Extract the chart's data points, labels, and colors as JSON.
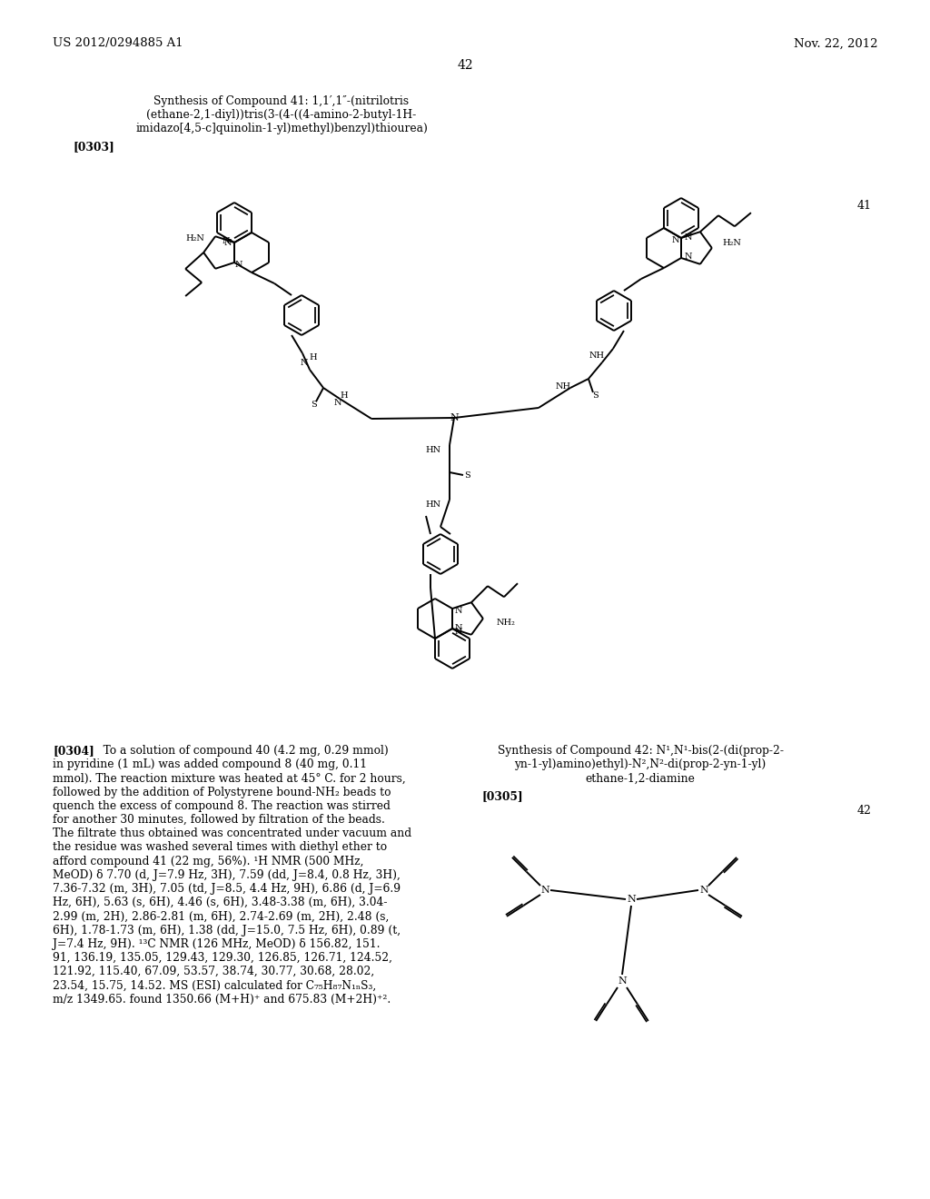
{
  "background_color": "#ffffff",
  "page_number": "42",
  "header_left": "US 2012/0294885 A1",
  "header_right": "Nov. 22, 2012",
  "synthesis_41_line1": "Synthesis of Compound 41: 1,1′,1″-(nitrilotris",
  "synthesis_41_line2": "(ethane-2,1-diyl))tris(3-(4-((4-amino-2-butyl-1H-",
  "synthesis_41_line3": "imidazo[4,5-c]quinolin-1-yl)methyl)benzyl)thiourea)",
  "label_0303": "[0303]",
  "compound_41_label": "41",
  "compound_42_label": "42",
  "synthesis_42_line1": "Synthesis of Compound 42: N¹,N¹-bis(2-(di(prop-2-",
  "synthesis_42_line2": "yn-1-yl)amino)ethyl)-N²,N²-di(prop-2-yn-1-yl)",
  "synthesis_42_line3": "ethane-1,2-diamine",
  "label_0304": "[0304]",
  "label_0305": "[0305]",
  "para304_bold": "[0304]",
  "para304_text_line1": "   To a solution of compound 40 (4.2 mg, 0.29 mmol)",
  "para304_lines": [
    "in pyridine (1 mL) was added compound 8 (40 mg, 0.11",
    "mmol). The reaction mixture was heated at 45° C. for 2 hours,",
    "followed by the addition of Polystyrene bound-NH₂ beads to",
    "quench the excess of compound 8. The reaction was stirred",
    "for another 30 minutes, followed by filtration of the beads.",
    "The filtrate thus obtained was concentrated under vacuum and",
    "the residue was washed several times with diethyl ether to",
    "afford compound 41 (22 mg, 56%). ¹H NMR (500 MHz,",
    "MeOD) δ 7.70 (d, J=7.9 Hz, 3H), 7.59 (dd, J=8.4, 0.8 Hz, 3H),",
    "7.36-7.32 (m, 3H), 7.05 (td, J=8.5, 4.4 Hz, 9H), 6.86 (d, J=6.9",
    "Hz, 6H), 5.63 (s, 6H), 4.46 (s, 6H), 3.48-3.38 (m, 6H), 3.04-",
    "2.99 (m, 2H), 2.86-2.81 (m, 6H), 2.74-2.69 (m, 2H), 2.48 (s,",
    "6H), 1.78-1.73 (m, 6H), 1.38 (dd, J=15.0, 7.5 Hz, 6H), 0.89 (t,",
    "J=7.4 Hz, 9H). ¹³C NMR (126 MHz, MeOD) δ 156.82, 151.",
    "91, 136.19, 135.05, 129.43, 129.30, 126.85, 126.71, 124.52,",
    "121.92, 115.40, 67.09, 53.57, 38.74, 30.77, 30.68, 28.02,",
    "23.54, 15.75, 14.52. MS (ESI) calculated for C₇₅H₈₇N₁ₙS₃,",
    "m/z 1349.65. found 1350.66 (M+H)⁺ and 675.83 (M+2H)⁺²."
  ],
  "fig_width": 10.24,
  "fig_height": 13.2,
  "dpi": 100
}
